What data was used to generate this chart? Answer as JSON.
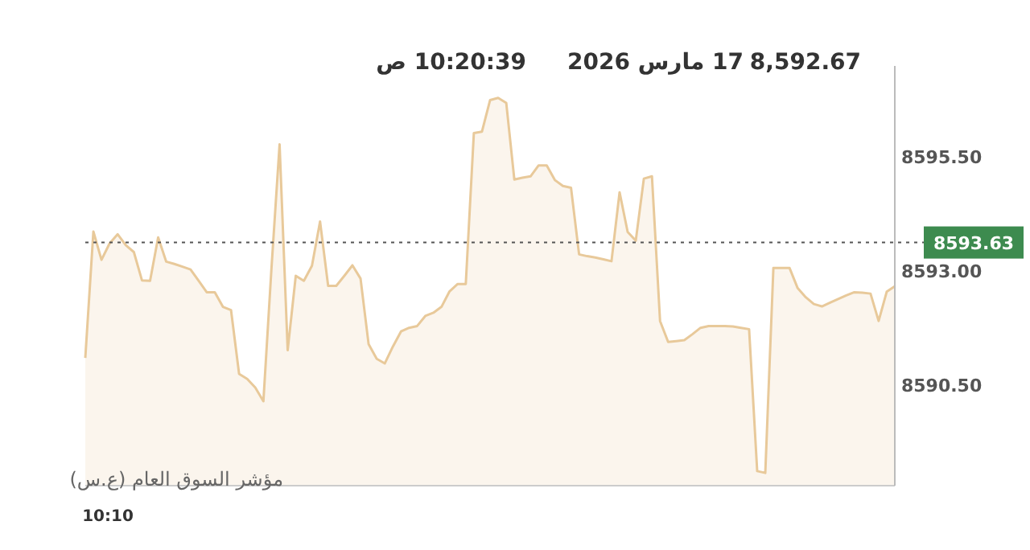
{
  "chart_data": {
    "type": "area",
    "categories": [
      null,
      null,
      null,
      null,
      null,
      null,
      null,
      null,
      null,
      null,
      null,
      null,
      null,
      null,
      null,
      null,
      null,
      null,
      null,
      null,
      null,
      null,
      null,
      null,
      null,
      null,
      null,
      null,
      null,
      null,
      null,
      null,
      null,
      null,
      null,
      null,
      null,
      null,
      null,
      null,
      null,
      null,
      null,
      null,
      null,
      null,
      null,
      null,
      null,
      null,
      null,
      null,
      null,
      null,
      null,
      null,
      null,
      null,
      null,
      null,
      null,
      null,
      null,
      null,
      null,
      null,
      null,
      null,
      null,
      null,
      null,
      null,
      null,
      null,
      null,
      null,
      null,
      null,
      null,
      null,
      null,
      null,
      null,
      null,
      null,
      null,
      null,
      null,
      null,
      null,
      null,
      null,
      null,
      null,
      null,
      null,
      null,
      null,
      null,
      null,
      null
    ],
    "series": [
      {
        "color": "#e8c99a",
        "values": [
          8591.1,
          8593.87,
          8593.25,
          8593.61,
          8593.81,
          8593.57,
          8593.42,
          8592.8,
          8592.79,
          8593.74,
          8593.21,
          8593.16,
          8593.1,
          8593.04,
          8592.79,
          8592.54,
          8592.54,
          8592.22,
          8592.15,
          8590.75,
          8590.64,
          8590.45,
          8590.15,
          8593.07,
          8595.78,
          8591.27,
          8592.9,
          8592.79,
          8593.12,
          8594.09,
          8592.68,
          8592.68,
          8592.9,
          8593.13,
          8592.84,
          8591.4,
          8591.08,
          8590.98,
          8591.35,
          8591.68,
          8591.76,
          8591.8,
          8592.02,
          8592.09,
          8592.22,
          8592.56,
          8592.72,
          8592.72,
          8596.03,
          8596.06,
          8596.75,
          8596.8,
          8596.69,
          8595.01,
          8595.05,
          8595.08,
          8595.32,
          8595.32,
          8595.0,
          8594.87,
          8594.83,
          8593.37,
          8593.33,
          8593.3,
          8593.26,
          8593.22,
          8594.73,
          8593.86,
          8593.67,
          8595.03,
          8595.08,
          8591.91,
          8591.45,
          8591.47,
          8591.49,
          8591.62,
          8591.76,
          8591.8,
          8591.8,
          8591.8,
          8591.79,
          8591.76,
          8591.73,
          8588.62,
          8588.58,
          8593.07,
          8593.07,
          8593.07,
          8592.63,
          8592.43,
          8592.28,
          8592.23,
          8592.31,
          8592.39,
          8592.47,
          8592.54,
          8592.53,
          8592.51,
          8591.91,
          8592.55,
          8592.67
        ]
      }
    ],
    "ylim": [
      8588.3,
      8597.5
    ],
    "yticks": [
      {
        "value": 8590.5,
        "label": "8590.50"
      },
      {
        "value": 8593,
        "label": "8593.00"
      },
      {
        "value": 8595.5,
        "label": "8595.50"
      }
    ],
    "ref_lines": [
      {
        "axis": "y",
        "value": 8593.63,
        "label": "8593.63",
        "color": "#555555",
        "line_style": "dotted"
      }
    ],
    "annotations": [
      "8,592.67",
      "17 مارس 2026",
      "10:20:39 ص",
      "مؤشر السوق العام (ع.س)",
      "10:10"
    ],
    "grid": false
  }
}
